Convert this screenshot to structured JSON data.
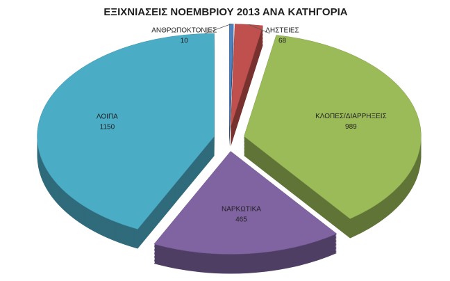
{
  "chart_data": {
    "type": "pie",
    "title": "ΕΞΙΧΝΙΑΣΕΙΣ ΝΟΕΜΒΡΙΟΥ 2013 ΑΝΑ ΚΑΤΗΓΟΡΙΑ",
    "categories": [
      "ΑΝΘΡΩΠΟΚΤΟΝΙΕΣ",
      "ΛΗΣΤΕΙΕΣ",
      "ΚΛΟΠΕΣ/ΔΙΑΡΡΗΞΕΙΣ",
      "ΝΑΡΚΩΤΙΚΑ",
      "ΛΟΙΠΑ"
    ],
    "values": [
      10,
      68,
      989,
      465,
      1150
    ],
    "colors": [
      "#4f81bd",
      "#c0504d",
      "#9bbb59",
      "#8064a2",
      "#4bacc6"
    ]
  }
}
